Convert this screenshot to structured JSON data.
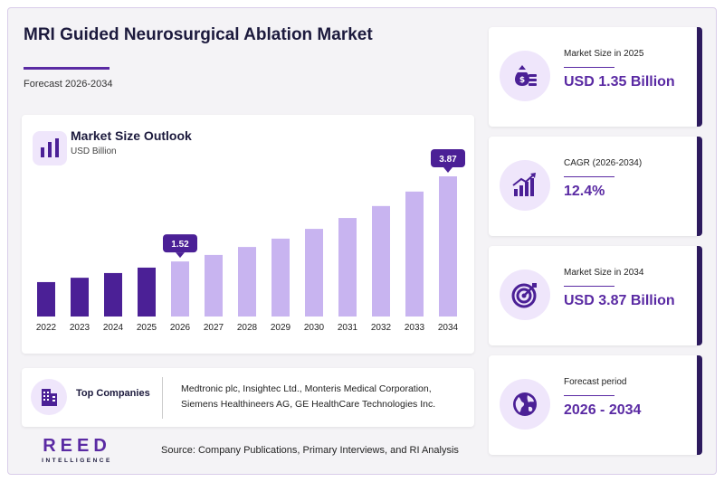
{
  "header": {
    "title": "MRI Guided Neurosurgical Ablation Market",
    "subtitle": "Forecast 2026-2034"
  },
  "chart_card": {
    "title": "Market Size Outlook",
    "unit": "USD Billion",
    "icon": "bar-chart-icon"
  },
  "chart_data": {
    "type": "bar",
    "title": "Market Size Outlook",
    "ylabel": "USD Billion",
    "categories": [
      "2022",
      "2023",
      "2024",
      "2025",
      "2026",
      "2027",
      "2028",
      "2029",
      "2030",
      "2031",
      "2032",
      "2033",
      "2034"
    ],
    "values": [
      0.95,
      1.07,
      1.2,
      1.35,
      1.52,
      1.7,
      1.92,
      2.15,
      2.42,
      2.72,
      3.05,
      3.45,
      3.87
    ],
    "historical_count": 4,
    "callouts": [
      {
        "category": "2026",
        "label": "1.52"
      },
      {
        "category": "2034",
        "label": "3.87"
      }
    ],
    "ylim": [
      0,
      3.87
    ],
    "colors": {
      "historical": "#4b2096",
      "forecast": "#c8b4f0",
      "callout": "#4b2096"
    },
    "grid": false,
    "legend": "none"
  },
  "companies": {
    "label": "Top Companies",
    "icon": "building-icon",
    "text": "Medtronic plc, Insightec Ltd., Monteris Medical Corporation, Siemens Healthineers AG, GE HealthCare Technologies Inc."
  },
  "footer": {
    "logo_main": "REED",
    "logo_sub": "INTELLIGENCE",
    "source": "Source: Company Publications, Primary Interviews, and RI Analysis"
  },
  "kpis": [
    {
      "label": "Market Size in 2025",
      "value": "USD 1.35 Billion",
      "icon": "money-bag-icon"
    },
    {
      "label": "CAGR (2026-2034)",
      "value": "12.4%",
      "icon": "growth-chart-icon"
    },
    {
      "label": "Market Size in 2034",
      "value": "USD 3.87 Billion",
      "icon": "target-icon"
    },
    {
      "label": "Forecast period",
      "value": "2026 - 2034",
      "icon": "globe-icon"
    }
  ],
  "colors": {
    "accent": "#5a2aa3",
    "dark": "#2d1b5e",
    "icon_bg": "#efe6fb"
  }
}
